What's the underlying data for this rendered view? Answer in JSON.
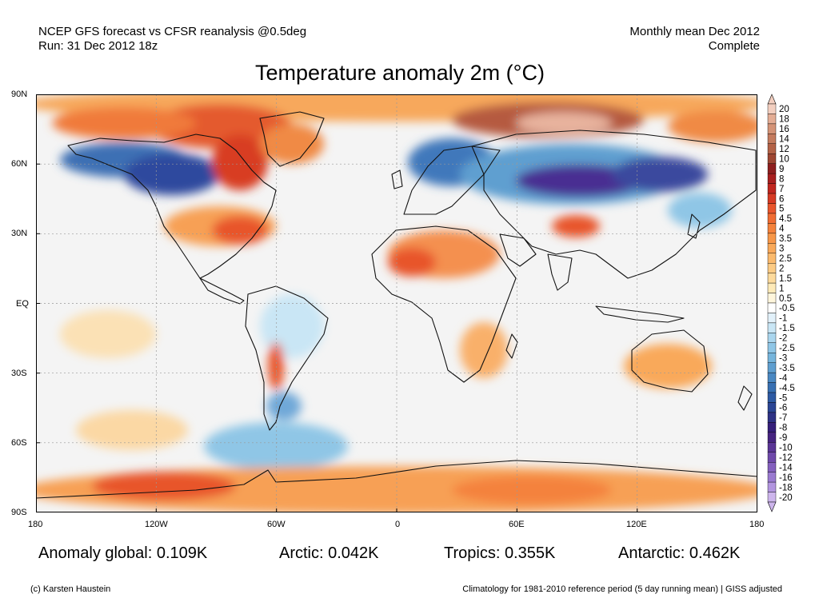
{
  "header": {
    "source_line": "NCEP GFS forecast vs CFSR reanalysis @0.5deg",
    "run_line": "Run: 31 Dec 2012 18z",
    "period_line": "Monthly mean Dec 2012",
    "status_line": "Complete"
  },
  "title": "Temperature anomaly 2m (°C)",
  "axes": {
    "lat_labels": [
      "90N",
      "60N",
      "30N",
      "EQ",
      "30S",
      "60S",
      "90S"
    ],
    "lon_labels": [
      "180",
      "120W",
      "60W",
      "0",
      "60E",
      "120E",
      "180"
    ]
  },
  "stats": {
    "global": "Anomaly global: 0.109K",
    "arctic": "Arctic: 0.042K",
    "tropics": "Tropics: 0.355K",
    "antarctic": "Antarctic: 0.462K"
  },
  "footer": {
    "credit": "(c) Karsten Haustein",
    "note": "Climatology for 1981-2010 reference period (5 day running mean) | GISS adjusted"
  },
  "colorbar": {
    "labels": [
      "20",
      "18",
      "16",
      "14",
      "12",
      "10",
      "9",
      "8",
      "7",
      "6",
      "5",
      "4.5",
      "4",
      "3.5",
      "3",
      "2.5",
      "2",
      "1.5",
      "1",
      "0.5",
      "-0.5",
      "-1",
      "-1.5",
      "-2",
      "-2.5",
      "-3",
      "-3.5",
      "-4",
      "-4.5",
      "-5",
      "-6",
      "-7",
      "-8",
      "-9",
      "-10",
      "-12",
      "-14",
      "-16",
      "-18",
      "-20"
    ],
    "colors": [
      "#f3cfc0",
      "#e4ad95",
      "#d49377",
      "#c47b5e",
      "#b36247",
      "#9e4632",
      "#8e1f1f",
      "#a81f1f",
      "#c0261f",
      "#d63a24",
      "#e8552c",
      "#f06c33",
      "#f4823c",
      "#f79749",
      "#f9a95a",
      "#fbba6d",
      "#fccb84",
      "#fdda9c",
      "#feeab8",
      "#fff6dc",
      "#ffffff",
      "#e2f1fa",
      "#c9e6f5",
      "#aad6ee",
      "#8fc6e6",
      "#76b5dc",
      "#5f9fd0",
      "#4a88c2",
      "#3870b2",
      "#2d5aa3",
      "#2a4594",
      "#2e3285",
      "#351f7a",
      "#462480",
      "#5a3595",
      "#6f49aa",
      "#8460be",
      "#9a7ad0",
      "#b295df",
      "#cdb5ec"
    ]
  },
  "map_colors": {
    "ocean": "#f4f4f4",
    "land": "#f7f7f7",
    "coast": "#111111"
  }
}
